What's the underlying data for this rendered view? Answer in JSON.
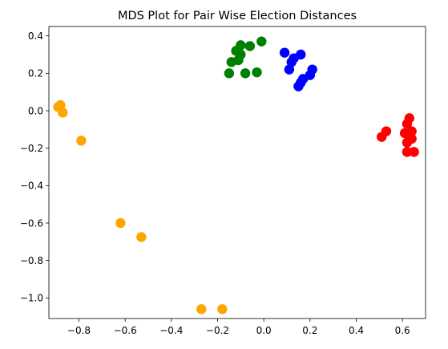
{
  "chart_data": {
    "type": "scatter",
    "title": "MDS Plot for Pair Wise Election Distances",
    "xlabel": "",
    "ylabel": "",
    "xlim": [
      -0.93,
      0.7
    ],
    "ylim": [
      -1.11,
      0.45
    ],
    "grid": false,
    "legend": "none",
    "x_ticks": [
      -0.8,
      -0.6,
      -0.4,
      -0.2,
      0.0,
      0.2,
      0.4,
      0.6
    ],
    "x_tick_labels": [
      "−0.8",
      "−0.6",
      "−0.4",
      "−0.2",
      "0.0",
      "0.2",
      "0.4",
      "0.6"
    ],
    "y_ticks": [
      0.4,
      0.2,
      0.0,
      -0.2,
      -0.4,
      -0.6,
      -0.8,
      -1.0
    ],
    "y_tick_labels": [
      "0.4",
      "0.2",
      "0.0",
      "−0.2",
      "−0.4",
      "−0.6",
      "−0.8",
      "−1.0"
    ],
    "series": [
      {
        "name": "green",
        "color": "#008000",
        "x": [
          -0.01,
          -0.06,
          -0.1,
          -0.12,
          -0.1,
          -0.11,
          -0.14,
          -0.15,
          -0.08,
          -0.03
        ],
        "y": [
          0.37,
          0.345,
          0.35,
          0.32,
          0.3,
          0.27,
          0.26,
          0.2,
          0.2,
          0.205
        ]
      },
      {
        "name": "blue",
        "color": "#0000ff",
        "x": [
          0.09,
          0.13,
          0.16,
          0.12,
          0.11,
          0.21,
          0.2,
          0.17,
          0.16,
          0.15
        ],
        "y": [
          0.31,
          0.28,
          0.3,
          0.26,
          0.22,
          0.22,
          0.19,
          0.17,
          0.15,
          0.13
        ]
      },
      {
        "name": "red",
        "color": "#ff0000",
        "x": [
          0.63,
          0.62,
          0.64,
          0.61,
          0.53,
          0.51,
          0.63,
          0.64,
          0.62,
          0.62,
          0.65
        ],
        "y": [
          -0.04,
          -0.07,
          -0.11,
          -0.12,
          -0.11,
          -0.14,
          -0.14,
          -0.15,
          -0.17,
          -0.22,
          -0.22
        ]
      },
      {
        "name": "orange",
        "color": "#ffa500",
        "x": [
          -0.88,
          -0.89,
          -0.87,
          -0.79,
          -0.62,
          -0.53,
          -0.27,
          -0.18
        ],
        "y": [
          0.03,
          0.02,
          -0.01,
          -0.16,
          -0.6,
          -0.675,
          -1.06,
          -1.06
        ]
      }
    ]
  }
}
